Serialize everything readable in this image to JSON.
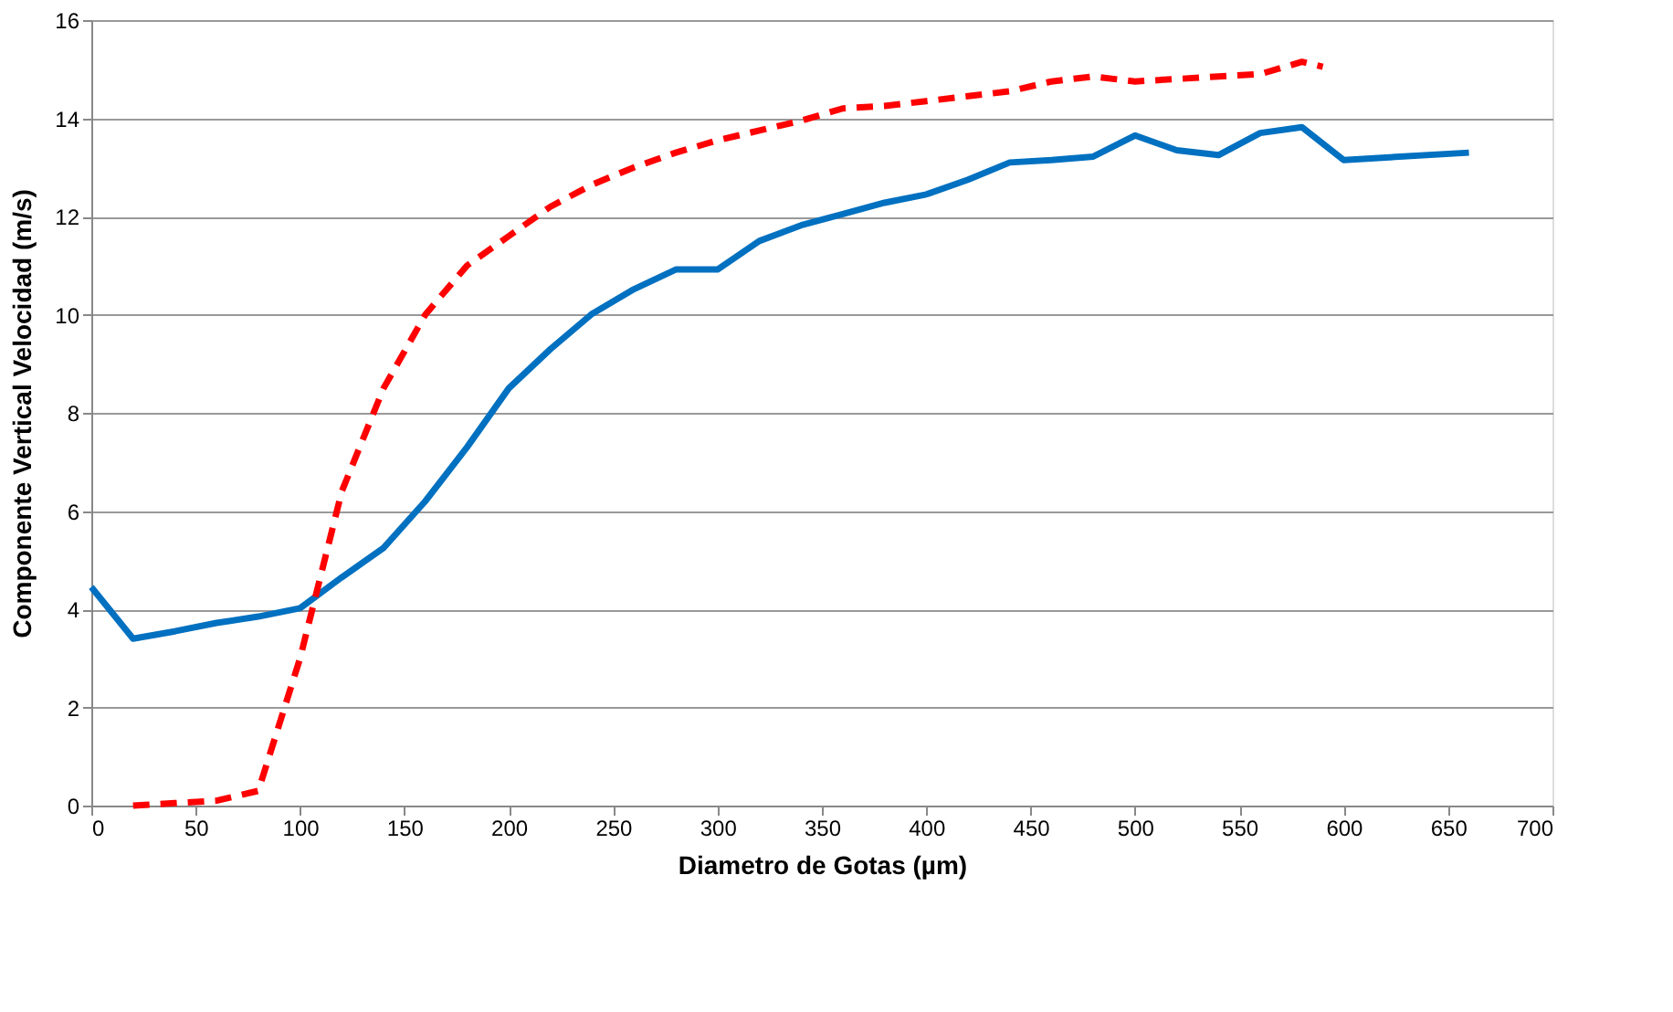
{
  "chart_data": {
    "type": "line",
    "xlabel": "Diametro de Gotas (µm)",
    "ylabel": "Componente Vertical Velocidad (m/s)",
    "xlim": [
      0,
      700
    ],
    "xticks": [
      0,
      50,
      100,
      150,
      200,
      250,
      300,
      350,
      400,
      450,
      500,
      550,
      600,
      650,
      700
    ],
    "ylim": [
      0,
      16
    ],
    "yticks": [
      0,
      2,
      4,
      6,
      8,
      10,
      12,
      14,
      16
    ],
    "grid": "y",
    "series": [
      {
        "color": "#0070c0",
        "line_style": "solid",
        "x": [
          0,
          20,
          40,
          60,
          80,
          100,
          120,
          140,
          160,
          180,
          200,
          220,
          240,
          260,
          280,
          300,
          320,
          340,
          360,
          380,
          400,
          420,
          440,
          460,
          480,
          500,
          520,
          540,
          560,
          580,
          600,
          660
        ],
        "values": [
          4.45,
          3.4,
          3.55,
          3.72,
          3.85,
          4.02,
          4.65,
          5.25,
          6.2,
          7.3,
          8.5,
          9.3,
          10.02,
          10.52,
          10.92,
          10.92,
          11.5,
          11.82,
          12.05,
          12.28,
          12.45,
          12.75,
          13.1,
          13.15,
          13.22,
          13.65,
          13.35,
          13.25,
          13.7,
          13.82,
          13.15,
          13.3
        ]
      },
      {
        "color": "#ff0000",
        "line_style": "dashed",
        "x": [
          20,
          40,
          60,
          80,
          100,
          120,
          140,
          160,
          180,
          200,
          220,
          240,
          260,
          280,
          300,
          320,
          340,
          360,
          380,
          400,
          420,
          440,
          460,
          480,
          500,
          520,
          540,
          560,
          580,
          590
        ],
        "values": [
          0,
          0.05,
          0.1,
          0.3,
          3.0,
          6.4,
          8.5,
          10.0,
          11.0,
          11.6,
          12.2,
          12.65,
          13.0,
          13.3,
          13.55,
          13.75,
          13.95,
          14.2,
          14.25,
          14.35,
          14.45,
          14.55,
          14.75,
          14.85,
          14.75,
          14.8,
          14.85,
          14.9,
          15.15,
          15.05
        ]
      }
    ]
  }
}
